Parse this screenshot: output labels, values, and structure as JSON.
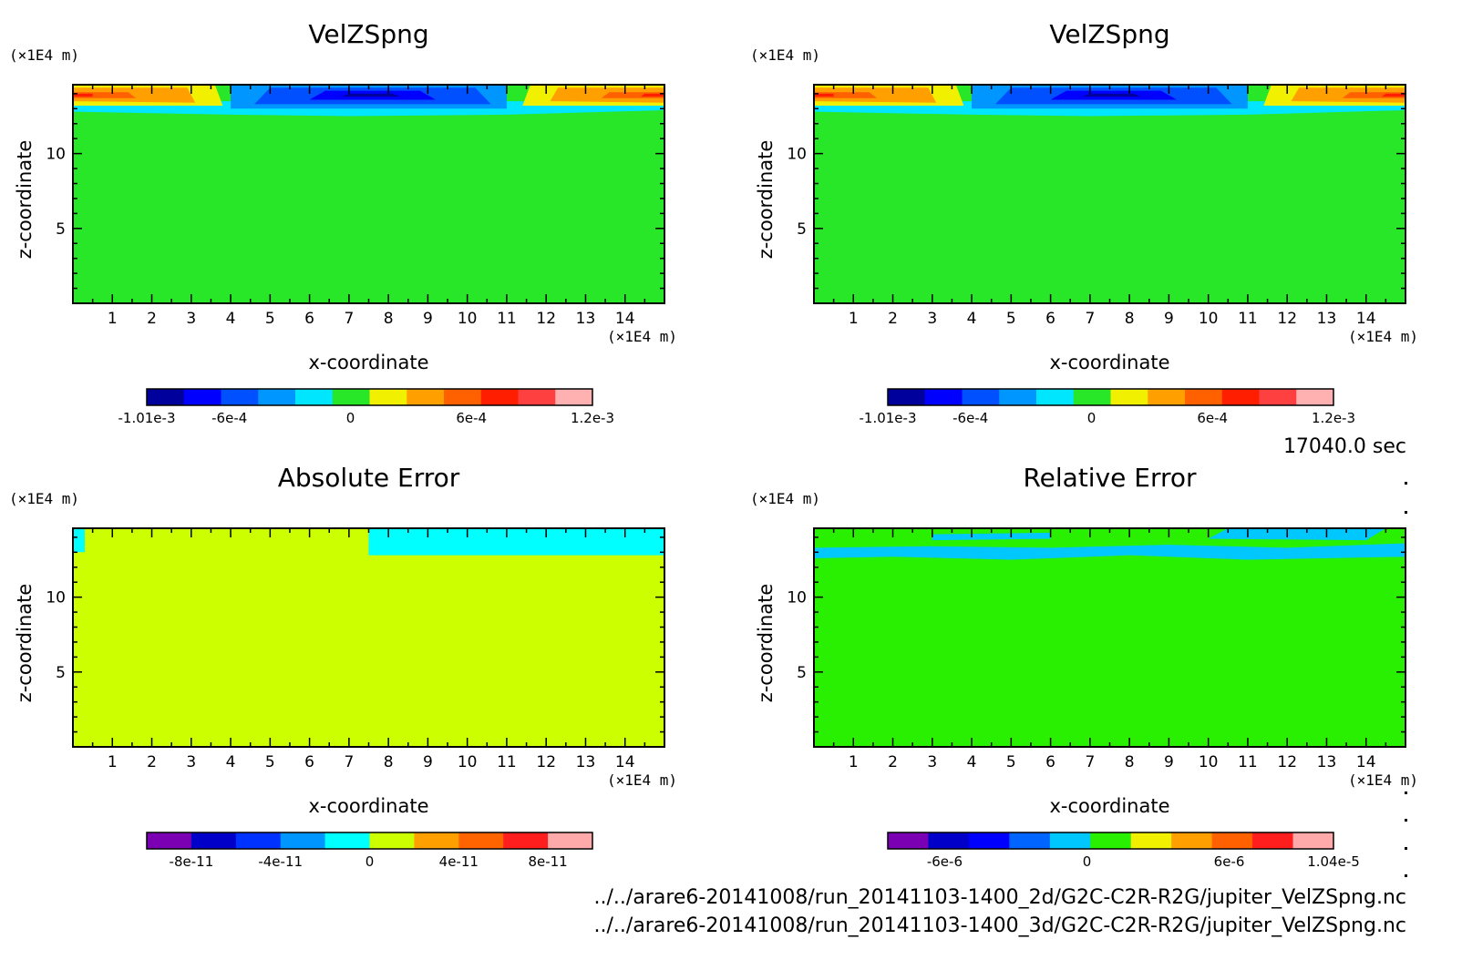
{
  "chart_data": [
    {
      "type": "heatmap",
      "title": "VelZSpng",
      "xlabel": "x-coordinate",
      "ylabel": "z-coordinate",
      "x_unit": "(×1E4 m)",
      "y_unit": "(×1E4 m)",
      "xlim": [
        0,
        15
      ],
      "ylim": [
        0,
        14.6
      ],
      "xticks": [
        "1",
        "2",
        "3",
        "4",
        "5",
        "6",
        "7",
        "8",
        "9",
        "10",
        "11",
        "12",
        "13",
        "14"
      ],
      "yticks": [
        "5",
        "10"
      ],
      "colorbar": {
        "colors": [
          "#00009c",
          "#0000ff",
          "#0050ff",
          "#0096ff",
          "#00e6ff",
          "#28e628",
          "#f0f000",
          "#ffa000",
          "#ff6000",
          "#ff1e00",
          "#ff4040",
          "#ffb0b0"
        ],
        "tick_labels": [
          "-1.01e-3",
          "-6e-4",
          "0",
          "6e-4",
          "1.2e-3"
        ],
        "range": [
          -0.00101,
          0.0012
        ]
      },
      "field_summary": "Near-zero (0 bin) throughout except a thin top layer (z≈13-14.6): positive values (up to ~1.2e-3) near x≈0-3.5 and x≈11.5-15, negative values (down to ~-1e-3) near x≈4-11."
    },
    {
      "type": "heatmap",
      "title": "VelZSpng",
      "xlabel": "x-coordinate",
      "ylabel": "z-coordinate",
      "x_unit": "(×1E4 m)",
      "y_unit": "(×1E4 m)",
      "xlim": [
        0,
        15
      ],
      "ylim": [
        0,
        14.6
      ],
      "xticks": [
        "1",
        "2",
        "3",
        "4",
        "5",
        "6",
        "7",
        "8",
        "9",
        "10",
        "11",
        "12",
        "13",
        "14"
      ],
      "yticks": [
        "5",
        "10"
      ],
      "colorbar": {
        "colors": [
          "#00009c",
          "#0000ff",
          "#0050ff",
          "#0096ff",
          "#00e6ff",
          "#28e628",
          "#f0f000",
          "#ffa000",
          "#ff6000",
          "#ff1e00",
          "#ff4040",
          "#ffb0b0"
        ],
        "tick_labels": [
          "-1.01e-3",
          "-6e-4",
          "0",
          "6e-4",
          "1.2e-3"
        ],
        "range": [
          -0.00101,
          0.0012
        ]
      },
      "field_summary": "Identical to the left panel."
    },
    {
      "type": "heatmap",
      "title": "Absolute Error",
      "xlabel": "x-coordinate",
      "ylabel": "z-coordinate",
      "x_unit": "(×1E4 m)",
      "y_unit": "(×1E4 m)",
      "xlim": [
        0,
        15
      ],
      "ylim": [
        0,
        14.6
      ],
      "xticks": [
        "1",
        "2",
        "3",
        "4",
        "5",
        "6",
        "7",
        "8",
        "9",
        "10",
        "11",
        "12",
        "13",
        "14"
      ],
      "yticks": [
        "5",
        "10"
      ],
      "colorbar": {
        "colors": [
          "#7b00b4",
          "#0000c8",
          "#0032ff",
          "#0096ff",
          "#00ffff",
          "#ccff00",
          "#ffa000",
          "#ff6400",
          "#ff1e1e",
          "#ffaaaa"
        ],
        "tick_labels": [
          "-8e-11",
          "-4e-11",
          "0",
          "4e-11",
          "8e-11"
        ],
        "range": [
          -1e-10,
          1e-10
        ]
      },
      "field_summary": "Zero-to-small-positive (yellow-green) everywhere below z≈12.8; small negative (cyan) in the top layer for x≈7.5-15 and patches near x≈0-0.3."
    },
    {
      "type": "heatmap",
      "title": "Relative Error",
      "xlabel": "x-coordinate",
      "ylabel": "z-coordinate",
      "x_unit": "(×1E4 m)",
      "y_unit": "(×1E4 m)",
      "xlim": [
        0,
        15
      ],
      "ylim": [
        0,
        14.6
      ],
      "xticks": [
        "1",
        "2",
        "3",
        "4",
        "5",
        "6",
        "7",
        "8",
        "9",
        "10",
        "11",
        "12",
        "13",
        "14"
      ],
      "yticks": [
        "5",
        "10"
      ],
      "colorbar": {
        "colors": [
          "#7b00b4",
          "#0000c8",
          "#0000ff",
          "#0064ff",
          "#00c8ff",
          "#28f000",
          "#f0f000",
          "#ffa000",
          "#ff6000",
          "#ff1e1e",
          "#ffaaaa"
        ],
        "tick_labels": [
          "-6e-6",
          "0",
          "6e-6",
          "1.04e-5"
        ],
        "range": [
          -8.4e-06,
          1.04e-05
        ]
      },
      "field_summary": "Near-zero (green) everywhere; small negative (cyan) in a patchy band z≈12.5-14.6."
    }
  ],
  "time_label": "17040.0 sec",
  "footer": {
    "line1": "../../arare6-20141008/run_20141103-1400_2d/G2C-C2R-R2G/jupiter_VelZSpng.nc",
    "line2": "../../arare6-20141008/run_20141103-1400_3d/G2C-C2R-R2G/jupiter_VelZSpng.nc"
  }
}
